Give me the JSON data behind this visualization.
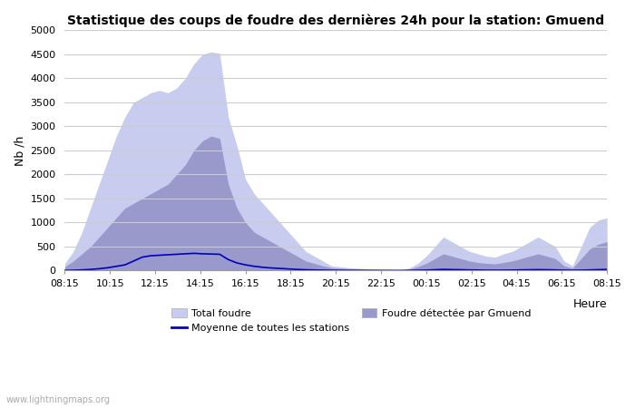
{
  "title": "Statistique des coups de foudre des dernières 24h pour la station: Gmuend",
  "ylabel": "Nb /h",
  "xlabel": "Heure",
  "ylim": [
    0,
    5000
  ],
  "yticks": [
    0,
    500,
    1000,
    1500,
    2000,
    2500,
    3000,
    3500,
    4000,
    4500,
    5000
  ],
  "xtick_labels": [
    "08:15",
    "10:15",
    "12:15",
    "14:15",
    "16:15",
    "18:15",
    "20:15",
    "22:15",
    "00:15",
    "02:15",
    "04:15",
    "06:15",
    "08:15"
  ],
  "watermark": "www.lightningmaps.org",
  "fill_total_color": "#c8ccee",
  "fill_detected_color": "#9999cc",
  "line_color": "#0000bb",
  "background_color": "#ffffff",
  "grid_color": "#cccccc",
  "total_foudre": [
    150,
    400,
    800,
    1300,
    1800,
    2300,
    2800,
    3200,
    3500,
    3600,
    3700,
    3750,
    3700,
    3800,
    4000,
    4300,
    4500,
    4550,
    4520,
    3200,
    2600,
    1900,
    1600,
    1400,
    1200,
    1000,
    800,
    600,
    400,
    300,
    200,
    100,
    80,
    60,
    50,
    40,
    30,
    25,
    20,
    15,
    50,
    150,
    300,
    500,
    700,
    600,
    500,
    400,
    350,
    300,
    280,
    350,
    400,
    500,
    600,
    700,
    600,
    500,
    200,
    100,
    500,
    900,
    1050,
    1100
  ],
  "detected_foudre": [
    80,
    200,
    350,
    500,
    700,
    900,
    1100,
    1300,
    1400,
    1500,
    1600,
    1700,
    1800,
    2000,
    2200,
    2500,
    2700,
    2800,
    2750,
    1800,
    1300,
    1000,
    800,
    700,
    600,
    500,
    400,
    300,
    200,
    150,
    100,
    60,
    50,
    40,
    30,
    25,
    20,
    15,
    10,
    8,
    30,
    80,
    150,
    250,
    350,
    300,
    250,
    200,
    170,
    150,
    140,
    170,
    200,
    250,
    300,
    350,
    300,
    250,
    100,
    50,
    250,
    450,
    550,
    600
  ],
  "moyenne": [
    5,
    8,
    15,
    25,
    40,
    60,
    90,
    120,
    200,
    280,
    310,
    320,
    330,
    340,
    350,
    360,
    350,
    345,
    340,
    230,
    160,
    120,
    90,
    70,
    55,
    45,
    35,
    25,
    18,
    14,
    10,
    7,
    6,
    5,
    5,
    4,
    4,
    3,
    3,
    3,
    5,
    8,
    12,
    18,
    25,
    22,
    18,
    15,
    12,
    10,
    9,
    10,
    12,
    15,
    18,
    20,
    18,
    15,
    10,
    8,
    10,
    15,
    20,
    25
  ],
  "n_points": 64,
  "figsize": [
    7.0,
    4.5
  ],
  "dpi": 100,
  "title_fontsize": 10,
  "tick_fontsize": 8,
  "ylabel_fontsize": 9,
  "legend_fontsize": 8
}
